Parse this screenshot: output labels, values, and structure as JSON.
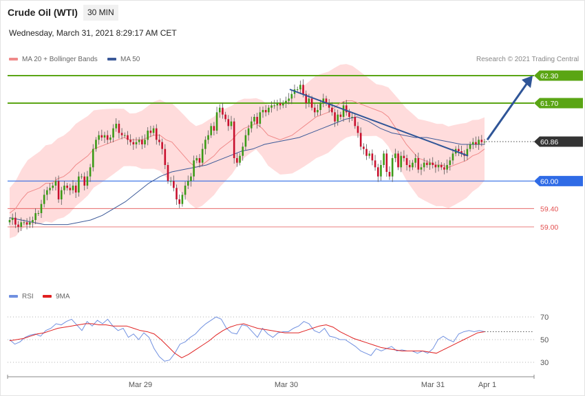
{
  "header": {
    "title": "Crude Oil (WTI)",
    "timeframe": "30 MIN",
    "datetime": "Wednesday, March 31, 2021 8:29:17 AM CET",
    "credit": "Research © 2021 Trading Central"
  },
  "legend": {
    "ma20": "MA 20 + Bollinger Bands",
    "ma50": "MA 50",
    "rsi": "RSI",
    "rsi_ma": "9MA"
  },
  "colors": {
    "candle_up": "#3a9a16",
    "candle_down": "#c8102e",
    "bollinger_fill": "#ffd6d6",
    "ma20": "#f08a8a",
    "ma50": "#3b5998",
    "resistance": "#5aa514",
    "support": "#2f6be6",
    "minor_support": "#e35050",
    "last_price": "#333333",
    "forecast_arrow": "#2f5597",
    "rsi_line": "#7090e0",
    "rsi_ma_line": "#e02020"
  },
  "chart_data": [
    {
      "type": "candlestick",
      "symbol": "Crude Oil (WTI)",
      "interval": "30 MIN",
      "ylim": [
        57.7,
        62.5
      ],
      "x_ticks": [
        "Mar 29",
        "Mar 30",
        "Mar 31",
        "Apr 1"
      ],
      "levels": [
        {
          "label": "62.30",
          "value": 62.3,
          "kind": "resistance"
        },
        {
          "label": "61.70",
          "value": 61.7,
          "kind": "resistance"
        },
        {
          "label": "60.86",
          "value": 60.86,
          "kind": "last_price"
        },
        {
          "label": "60.00",
          "value": 60.0,
          "kind": "support"
        },
        {
          "label": "59.40",
          "value": 59.4,
          "kind": "minor_support"
        },
        {
          "label": "59.00",
          "value": 59.0,
          "kind": "minor_support"
        }
      ],
      "closes": [
        59.15,
        59.2,
        59.05,
        59.0,
        59.1,
        59.1,
        59.05,
        59.1,
        59.15,
        59.3,
        59.3,
        59.5,
        59.7,
        59.8,
        59.85,
        59.9,
        60.0,
        59.6,
        59.8,
        59.9,
        59.85,
        59.8,
        59.9,
        59.75,
        60.1,
        60.1,
        59.9,
        60.1,
        60.3,
        60.7,
        60.9,
        61.0,
        60.95,
        61.0,
        60.9,
        60.95,
        61.15,
        61.25,
        61.05,
        61.0,
        61.0,
        60.9,
        60.85,
        60.8,
        60.85,
        60.9,
        60.8,
        60.9,
        61.1,
        61.05,
        61.15,
        60.9,
        60.85,
        60.7,
        60.35,
        60.0,
        60.0,
        59.85,
        59.6,
        59.5,
        59.7,
        59.9,
        60.0,
        60.1,
        60.45,
        60.5,
        60.4,
        60.7,
        60.9,
        61.0,
        61.2,
        61.1,
        61.5,
        61.6,
        61.45,
        61.35,
        61.2,
        61.3,
        60.5,
        60.4,
        60.55,
        60.75,
        61.0,
        61.15,
        61.3,
        61.4,
        61.25,
        61.5,
        61.55,
        61.5,
        61.6,
        61.65,
        61.65,
        61.7,
        61.65,
        61.7,
        61.75,
        61.8,
        61.9,
        62.0,
        62.0,
        62.1,
        61.9,
        61.7,
        61.8,
        61.6,
        61.5,
        61.55,
        61.7,
        61.8,
        61.7,
        61.6,
        61.5,
        61.3,
        61.45,
        61.4,
        61.65,
        61.5,
        61.4,
        61.4,
        61.2,
        61.05,
        60.75,
        60.7,
        60.55,
        60.6,
        60.45,
        60.3,
        60.1,
        60.35,
        60.6,
        60.2,
        60.1,
        60.5,
        60.6,
        60.3,
        60.55,
        60.5,
        60.35,
        60.3,
        60.4,
        60.5,
        60.25,
        60.3,
        60.4,
        60.35,
        60.4,
        60.35,
        60.3,
        60.35,
        60.3,
        60.25,
        60.35,
        60.45,
        60.6,
        60.7,
        60.65,
        60.6,
        60.55,
        60.7,
        60.8,
        60.85,
        60.8,
        60.9,
        60.85,
        60.86
      ],
      "ma20": [
        59.3,
        59.4,
        59.6,
        59.75,
        59.8,
        59.85,
        59.95,
        59.95,
        60.05,
        60.1,
        60.2,
        60.35,
        60.45,
        60.55,
        60.7,
        60.75,
        60.8,
        60.85,
        60.9,
        60.95,
        60.9,
        60.9,
        60.9,
        60.95,
        61.0,
        61.0,
        60.9,
        60.85,
        60.7,
        60.55,
        60.4,
        60.3,
        60.35,
        60.45,
        60.55,
        60.7,
        60.8,
        60.9,
        61.05,
        61.15,
        61.2,
        61.25,
        61.15,
        61.0,
        60.95,
        60.9,
        60.95,
        61.0,
        61.1,
        61.2,
        61.3,
        61.4,
        61.45,
        61.5,
        61.6,
        61.7,
        61.75,
        61.75,
        61.7,
        61.65,
        61.6,
        61.55,
        61.5,
        61.4,
        61.2,
        61.0,
        60.8,
        60.65,
        60.5,
        60.45,
        60.4,
        60.35,
        60.35,
        60.3,
        60.35,
        60.4,
        60.45,
        60.55,
        60.6,
        60.7
      ],
      "ma50": [
        59.2,
        59.15,
        59.1,
        59.05,
        59.05,
        59.05,
        59.1,
        59.15,
        59.25,
        59.4,
        59.55,
        59.75,
        59.95,
        60.1,
        60.2,
        60.25,
        60.3,
        60.35,
        60.45,
        60.55,
        60.65,
        60.7,
        60.8,
        60.85,
        60.9,
        60.95,
        61.05,
        61.15,
        61.25,
        61.35,
        61.4,
        61.3,
        61.15,
        61.05,
        61.0,
        60.95,
        60.95,
        60.9,
        60.85,
        60.8,
        60.8,
        60.8
      ],
      "trendline": {
        "from": 62.0,
        "to": 60.55
      },
      "forecast_target": 62.3
    },
    {
      "type": "line",
      "title": "RSI",
      "ylim": [
        22,
        78
      ],
      "y_ticks": [
        30,
        50,
        70
      ],
      "series": [
        {
          "name": "RSI",
          "values": [
            50,
            46,
            48,
            52,
            54,
            55,
            53,
            58,
            60,
            64,
            63,
            66,
            68,
            63,
            58,
            66,
            62,
            67,
            64,
            68,
            62,
            58,
            60,
            52,
            55,
            50,
            56,
            52,
            42,
            35,
            31,
            32,
            38,
            46,
            48,
            52,
            55,
            60,
            64,
            67,
            70,
            68,
            60,
            56,
            55,
            63,
            62,
            57,
            52,
            60,
            55,
            52,
            56,
            57,
            57,
            60,
            62,
            66,
            64,
            58,
            56,
            60,
            53,
            52,
            50,
            50,
            47,
            44,
            40,
            38,
            36,
            42,
            40,
            42,
            44,
            40,
            41,
            40,
            40,
            38,
            40,
            38,
            42,
            50,
            53,
            50,
            48,
            55,
            57,
            58,
            57,
            58,
            57
          ]
        },
        {
          "name": "9MA",
          "values": [
            49,
            50,
            51,
            53,
            55,
            56,
            58,
            60,
            61,
            62,
            63,
            64,
            64,
            63,
            63,
            62,
            62,
            62,
            60,
            58,
            57,
            55,
            50,
            44,
            38,
            34,
            37,
            41,
            45,
            49,
            54,
            58,
            61,
            63,
            64,
            62,
            60,
            59,
            58,
            57,
            56,
            56,
            56,
            58,
            60,
            62,
            63,
            61,
            57,
            54,
            51,
            49,
            47,
            45,
            43,
            42,
            41,
            40,
            40,
            40,
            40,
            39,
            38,
            41,
            44,
            47,
            50,
            53,
            56,
            57
          ]
        }
      ]
    }
  ]
}
